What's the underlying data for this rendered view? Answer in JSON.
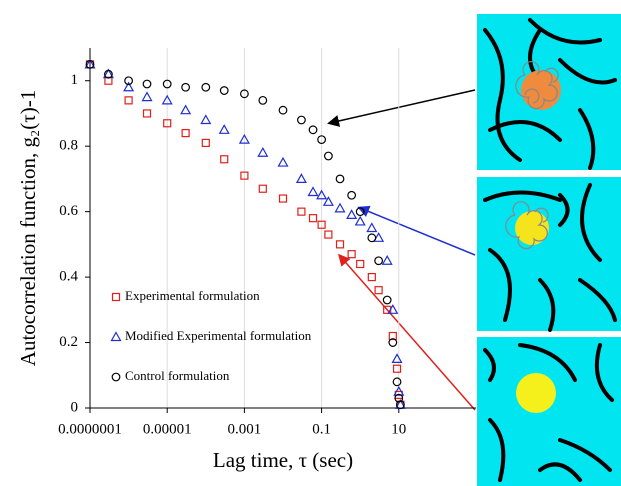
{
  "chart_data": {
    "type": "scatter",
    "xlabel": "Lag time, τ (sec)",
    "ylabel": "Autocorrelation function, g₂(τ)-1",
    "xlog": true,
    "grid": true,
    "xlim": [
      1e-07,
      1000
    ],
    "xticks": [
      {
        "value": 1e-07,
        "label": "0.0000001"
      },
      1e-05,
      0.001,
      0.1,
      10
    ],
    "ylim": [
      0,
      1.1
    ],
    "yticks": [
      0,
      0.2,
      0.4,
      0.6,
      0.8,
      1
    ],
    "x": [
      1e-07,
      3e-07,
      1e-06,
      3e-06,
      1e-05,
      3e-05,
      0.0001,
      0.0003,
      0.001,
      0.003,
      0.01,
      0.03,
      0.06,
      0.1,
      0.15,
      0.3,
      0.6,
      1,
      2,
      3,
      5,
      7,
      9,
      10,
      11
    ],
    "series": [
      {
        "name": "Experimental formulation",
        "color": "#e0201b",
        "marker": "square",
        "values": [
          1.05,
          1.0,
          0.94,
          0.9,
          0.87,
          0.84,
          0.81,
          0.76,
          0.71,
          0.67,
          0.64,
          0.6,
          0.58,
          0.56,
          0.53,
          0.5,
          0.47,
          0.44,
          0.4,
          0.36,
          0.3,
          0.22,
          0.12,
          0.04,
          0.01
        ]
      },
      {
        "name": "Modified Experimental formulation",
        "color": "#1f2fd0",
        "marker": "triangle",
        "values": [
          1.05,
          1.02,
          0.98,
          0.95,
          0.94,
          0.91,
          0.88,
          0.85,
          0.82,
          0.78,
          0.75,
          0.7,
          0.66,
          0.65,
          0.63,
          0.61,
          0.59,
          0.57,
          0.55,
          0.52,
          0.45,
          0.3,
          0.15,
          0.05,
          0.01
        ]
      },
      {
        "name": "Control formulation",
        "color": "#000000",
        "marker": "circle",
        "values": [
          1.05,
          1.02,
          1.0,
          0.99,
          0.99,
          0.98,
          0.98,
          0.97,
          0.96,
          0.94,
          0.91,
          0.88,
          0.85,
          0.82,
          0.77,
          0.7,
          0.65,
          0.6,
          0.52,
          0.45,
          0.33,
          0.2,
          0.08,
          0.03,
          0.01
        ]
      }
    ]
  }
}
